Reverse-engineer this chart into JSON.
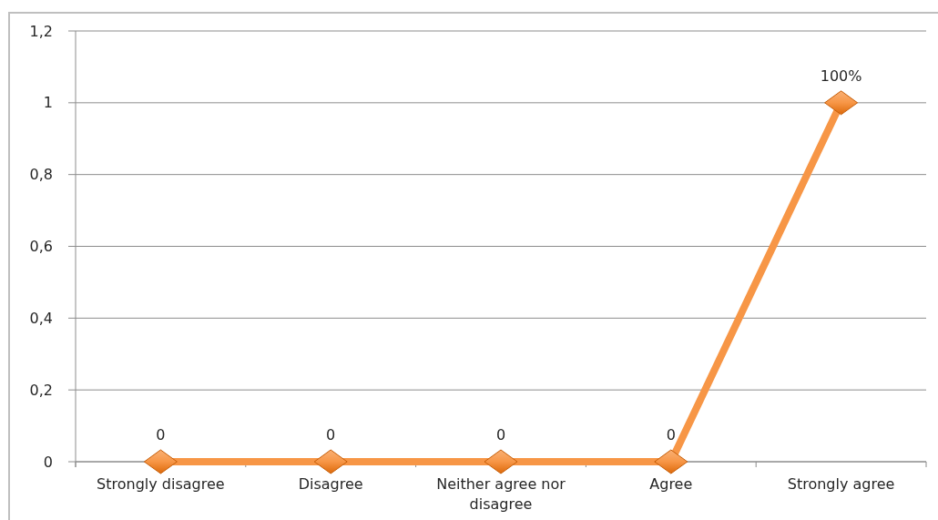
{
  "chart_data": {
    "type": "line",
    "categories": [
      "Strongly disagree",
      "Disagree",
      "Neither agree nor disagree",
      "Agree",
      "Strongly agree"
    ],
    "series": [
      {
        "color": "#f79646",
        "values": [
          0,
          0,
          0,
          0,
          1
        ],
        "value_labels": [
          "0",
          "0",
          "0",
          "0",
          "100%"
        ]
      }
    ],
    "ylim": [
      0,
      1.2
    ],
    "yticks": [
      0,
      {
        "value": 0.2,
        "label": "0,2"
      },
      {
        "value": 0.4,
        "label": "0,4"
      },
      {
        "value": 0.6,
        "label": "0,6"
      },
      {
        "value": 0.8,
        "label": "0,8"
      },
      1,
      {
        "value": 1.2,
        "label": "1,2"
      }
    ],
    "grid": "y",
    "marker": "diamond",
    "line_style": "solid"
  }
}
